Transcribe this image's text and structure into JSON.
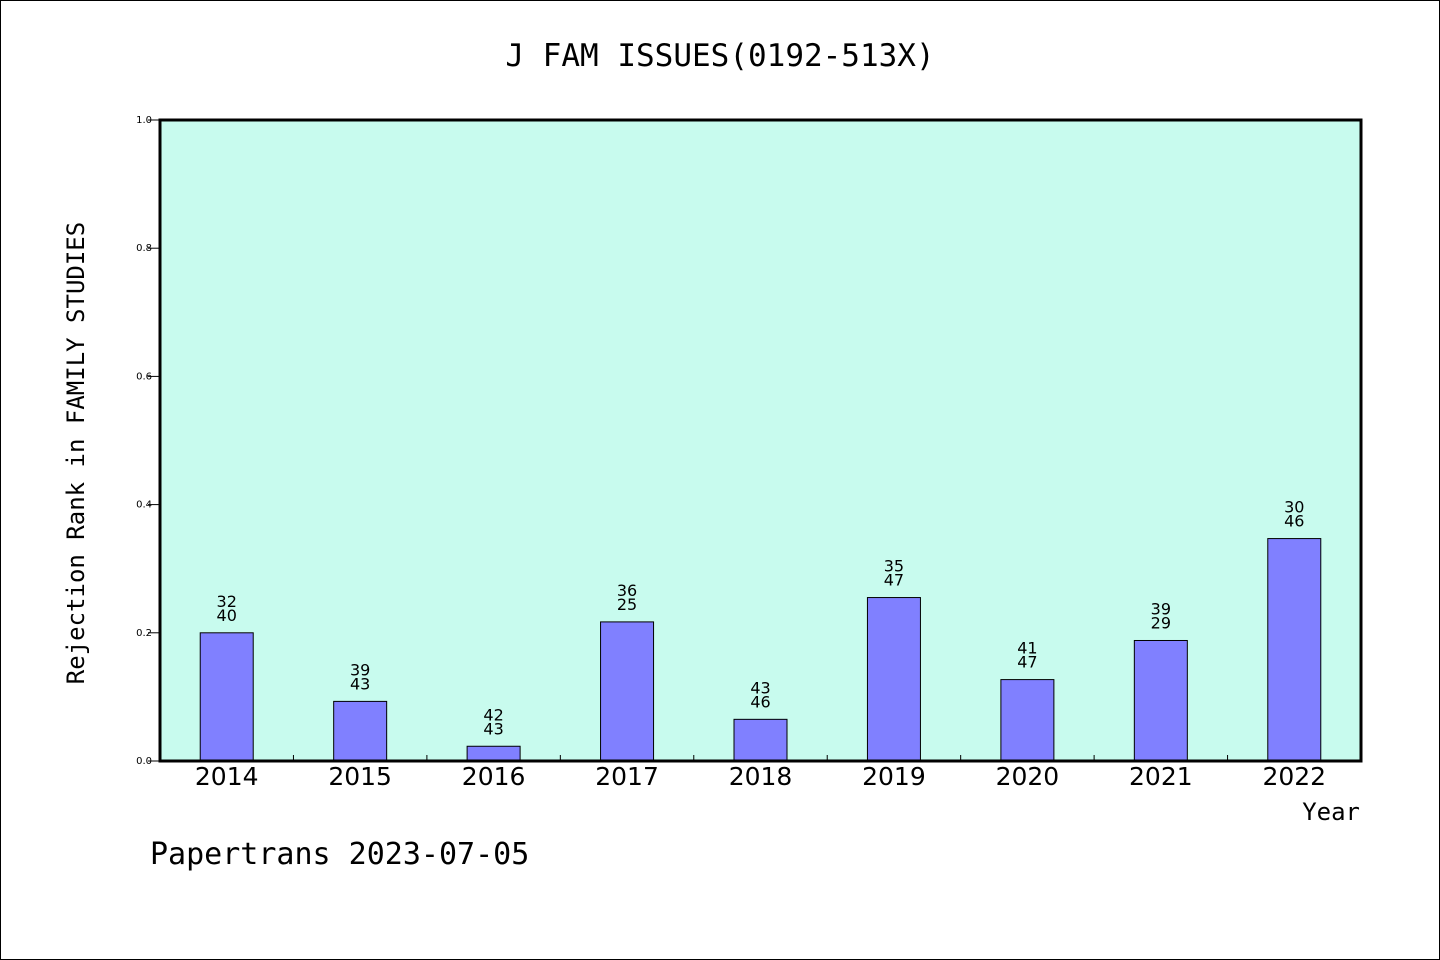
{
  "chart_data": {
    "type": "bar",
    "title": "J FAM ISSUES(0192-513X)",
    "xlabel": "Year",
    "ylabel": "Rejection Rank in FAMILY STUDIES",
    "categories": [
      "2014",
      "2015",
      "2016",
      "2017",
      "2018",
      "2019",
      "2020",
      "2021",
      "2022"
    ],
    "values": [
      0.2,
      0.093,
      0.023,
      0.217,
      0.065,
      0.255,
      0.127,
      0.188,
      0.347
    ],
    "bar_labels": [
      [
        "32",
        "40"
      ],
      [
        "39",
        "43"
      ],
      [
        "42",
        "43"
      ],
      [
        "36",
        "25"
      ],
      [
        "43",
        "46"
      ],
      [
        "35",
        "47"
      ],
      [
        "41",
        "47"
      ],
      [
        "39",
        "29"
      ],
      [
        "30",
        "46"
      ]
    ],
    "ylim": [
      0,
      1.0
    ],
    "yticks": [
      "0.0",
      "0.2",
      "0.4",
      "0.6",
      "0.8",
      "1.0"
    ],
    "grid": false,
    "colors": {
      "plot_background": "#c8fbee",
      "bar_fill": "#8080ff",
      "bar_stroke": "#000000"
    }
  },
  "footer": "Papertrans 2023-07-05"
}
